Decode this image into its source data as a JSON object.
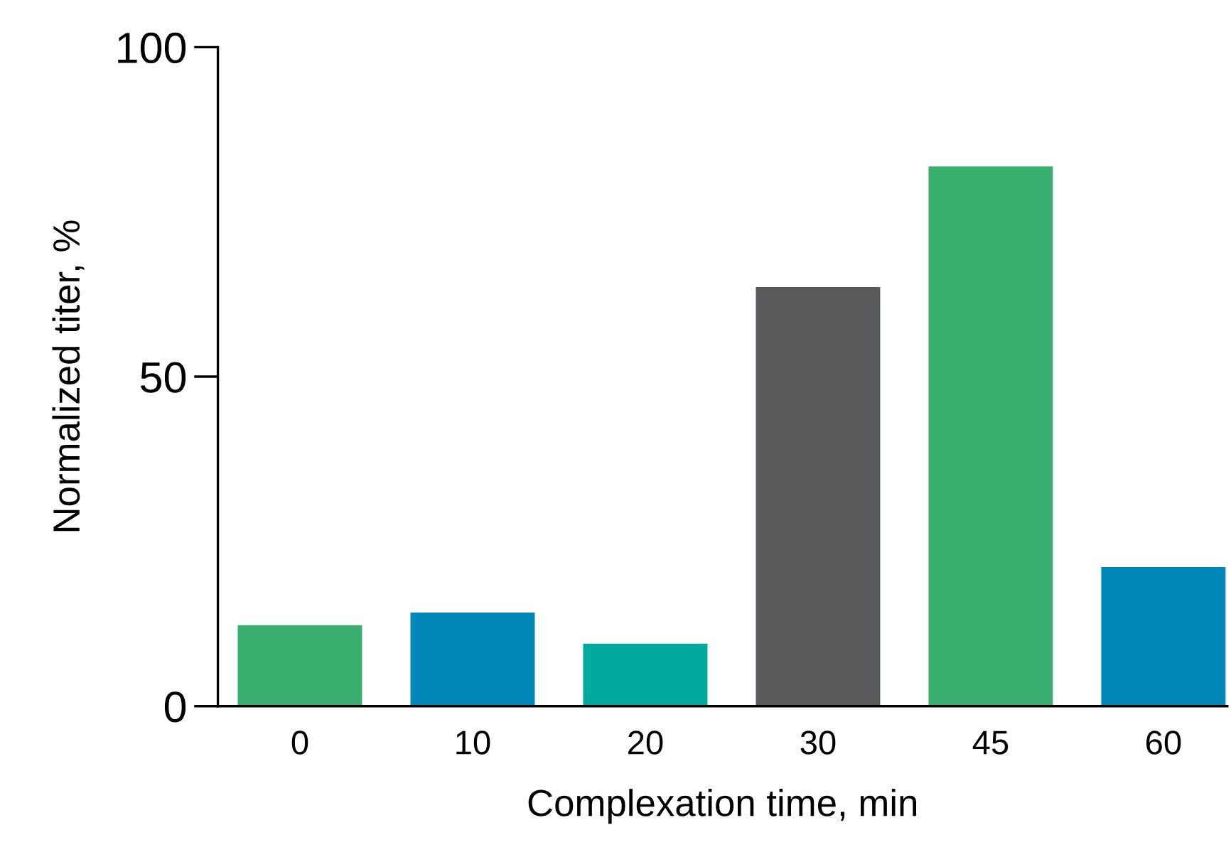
{
  "chart_data": {
    "type": "bar",
    "xlabel": "Complexation time, min",
    "ylabel": "Normalized titer, %",
    "categories": [
      "0",
      "10",
      "20",
      "30",
      "45",
      "60"
    ],
    "values": [
      12.3,
      14.2,
      9.5,
      63.6,
      81.9,
      21.1
    ],
    "colors": [
      "#3aaf6e",
      "#0088b9",
      "#00a99d",
      "#58595b",
      "#3aaf6e",
      "#0088b9"
    ],
    "ylim": [
      0,
      100
    ],
    "yticks": [
      0,
      50,
      100
    ],
    "grid": false,
    "legend": false
  }
}
